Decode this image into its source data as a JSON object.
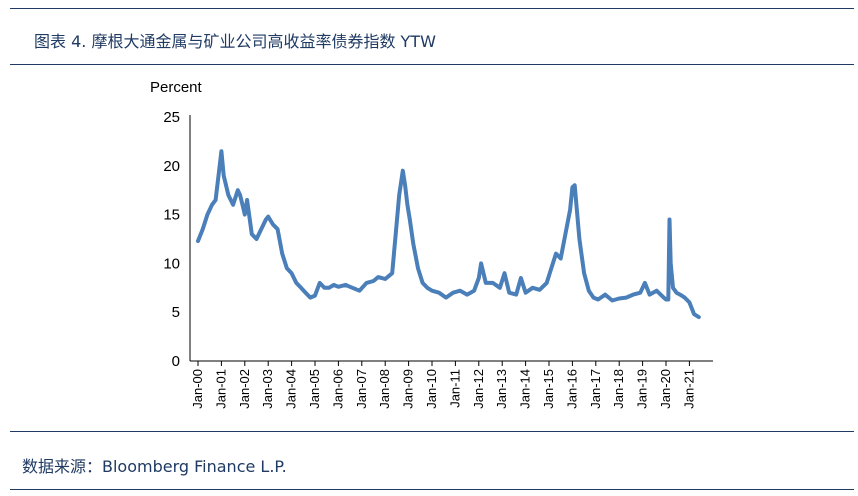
{
  "figure_title": "图表 4. 摩根大通金属与矿业公司高收益率债券指数 YTW",
  "source": "数据来源：Bloomberg Finance L.P.",
  "colors": {
    "series": "#4a7fb9",
    "rules": "#1f3a63",
    "axis": "#000000"
  },
  "chart_data": {
    "type": "line",
    "title": "",
    "xlabel": "",
    "ylabel": "Percent",
    "ylim": [
      0,
      25
    ],
    "y_ticks": [
      0,
      5,
      10,
      15,
      20,
      25
    ],
    "x_tick_labels": [
      "Jan-00",
      "Jan-01",
      "Jan-02",
      "Jan-03",
      "Jan-04",
      "Jan-05",
      "Jan-06",
      "Jan-07",
      "Jan-08",
      "Jan-09",
      "Jan-10",
      "Jan-11",
      "Jan-12",
      "Jan-13",
      "Jan-14",
      "Jan-15",
      "Jan-16",
      "Jan-17",
      "Jan-18",
      "Jan-19",
      "Jan-20",
      "Jan-21"
    ],
    "x_range": [
      2000.0,
      2021.4
    ],
    "grid": false,
    "legend": "none",
    "series": [
      {
        "color": "#4a7fb9",
        "x": [
          2000.0,
          2000.2,
          2000.4,
          2000.6,
          2000.75,
          2000.9,
          2001.0,
          2001.1,
          2001.3,
          2001.5,
          2001.7,
          2001.8,
          2001.9,
          2002.0,
          2002.1,
          2002.3,
          2002.5,
          2002.7,
          2002.9,
          2003.0,
          2003.2,
          2003.4,
          2003.6,
          2003.8,
          2004.0,
          2004.2,
          2004.4,
          2004.6,
          2004.8,
          2005.0,
          2005.2,
          2005.4,
          2005.6,
          2005.8,
          2006.0,
          2006.3,
          2006.6,
          2006.9,
          2007.2,
          2007.5,
          2007.7,
          2008.0,
          2008.3,
          2008.6,
          2008.75,
          2008.85,
          2008.95,
          2009.05,
          2009.2,
          2009.4,
          2009.6,
          2009.8,
          2010.0,
          2010.3,
          2010.6,
          2010.9,
          2011.2,
          2011.5,
          2011.8,
          2012.0,
          2012.1,
          2012.3,
          2012.6,
          2012.9,
          2013.1,
          2013.3,
          2013.6,
          2013.8,
          2014.0,
          2014.3,
          2014.6,
          2014.9,
          2015.1,
          2015.3,
          2015.5,
          2015.7,
          2015.9,
          2016.0,
          2016.1,
          2016.3,
          2016.5,
          2016.7,
          2016.9,
          2017.1,
          2017.4,
          2017.7,
          2018.0,
          2018.3,
          2018.6,
          2018.9,
          2019.1,
          2019.3,
          2019.6,
          2019.9,
          2020.0,
          2020.1,
          2020.15,
          2020.2,
          2020.3,
          2020.45,
          2020.6,
          2020.8,
          2021.0,
          2021.2,
          2021.4
        ],
        "y": [
          12.3,
          13.5,
          15.0,
          16.0,
          16.5,
          19.5,
          21.5,
          19.0,
          17.0,
          16.0,
          17.5,
          17.0,
          16.0,
          15.0,
          16.5,
          13.0,
          12.5,
          13.5,
          14.5,
          14.8,
          14.0,
          13.5,
          11.0,
          9.5,
          9.0,
          8.0,
          7.5,
          7.0,
          6.5,
          6.7,
          8.0,
          7.5,
          7.5,
          7.8,
          7.6,
          7.8,
          7.5,
          7.2,
          8.0,
          8.2,
          8.6,
          8.4,
          9.0,
          17.0,
          19.5,
          18.0,
          16.0,
          14.5,
          12.0,
          9.5,
          8.0,
          7.5,
          7.2,
          7.0,
          6.5,
          7.0,
          7.2,
          6.8,
          7.2,
          8.5,
          10.0,
          8.0,
          8.0,
          7.5,
          9.0,
          7.0,
          6.8,
          8.5,
          7.0,
          7.5,
          7.3,
          8.0,
          9.5,
          11.0,
          10.5,
          13.0,
          15.5,
          17.8,
          18.0,
          12.5,
          9.0,
          7.2,
          6.5,
          6.3,
          6.8,
          6.2,
          6.4,
          6.5,
          6.8,
          7.0,
          8.0,
          6.8,
          7.2,
          6.5,
          6.3,
          6.3,
          14.5,
          10.0,
          7.5,
          7.0,
          6.8,
          6.5,
          6.0,
          4.8,
          4.5
        ]
      }
    ]
  }
}
